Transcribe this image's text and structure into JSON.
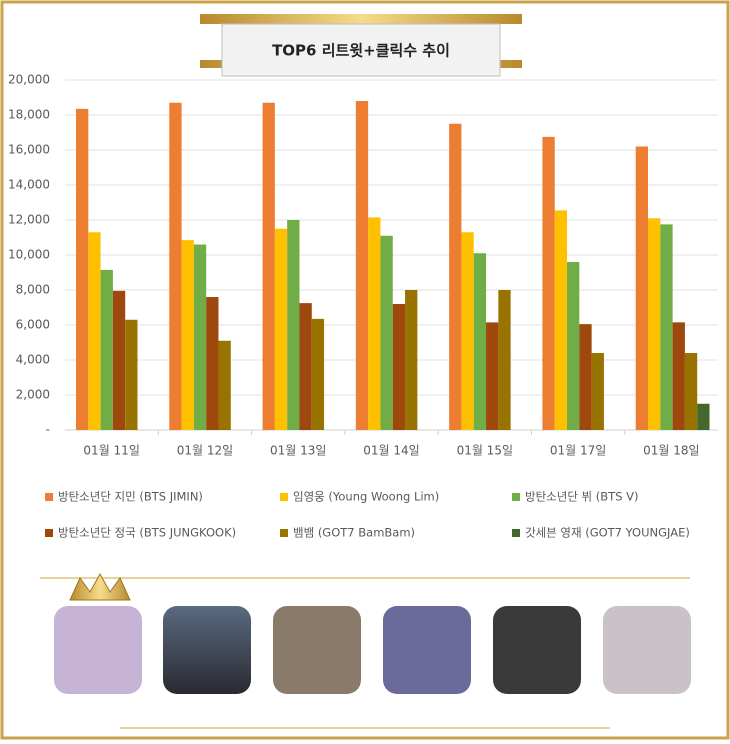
{
  "chart_data": {
    "type": "bar",
    "title": "TOP6 리트윗+클릭수 추이",
    "categories": [
      "01월 11일",
      "01월 12일",
      "01월 13일",
      "01월 14일",
      "01월 15일",
      "01월 17일",
      "01월 18일"
    ],
    "series": [
      {
        "name": "방탄소년단 지민 (BTS JIMIN)",
        "color": "#ed7d31",
        "values": [
          18350,
          18700,
          18700,
          18800,
          17500,
          16750,
          16200
        ]
      },
      {
        "name": "임영웅 (Young Woong Lim)",
        "color": "#ffc000",
        "values": [
          11300,
          10850,
          11500,
          12150,
          11300,
          12550,
          12100
        ]
      },
      {
        "name": "방탄소년단 뷔 (BTS V)",
        "color": "#70ad47",
        "values": [
          9150,
          10600,
          12000,
          11100,
          10100,
          9600,
          11750
        ]
      },
      {
        "name": "방탄소년단 정국 (BTS JUNGKOOK)",
        "color": "#9e480e",
        "values": [
          7950,
          7600,
          7250,
          7200,
          6150,
          6050,
          6150
        ]
      },
      {
        "name": "뱀뱀 (GOT7 BamBam)",
        "color": "#997300",
        "values": [
          6300,
          5100,
          6350,
          8000,
          8000,
          4400,
          4400
        ]
      },
      {
        "name": "갓세븐 영재 (GOT7 YOUNGJAE)",
        "color": "#43682b",
        "values": [
          null,
          null,
          null,
          null,
          null,
          null,
          1500
        ]
      }
    ],
    "ylim": [
      0,
      20000
    ],
    "yticks": [
      {
        "value": 0,
        "label": "-"
      },
      {
        "value": 2000,
        "label": "2,000"
      },
      {
        "value": 4000,
        "label": "4,000"
      },
      {
        "value": 6000,
        "label": "6,000"
      },
      {
        "value": 8000,
        "label": "8,000"
      },
      {
        "value": 10000,
        "label": "10,000"
      },
      {
        "value": 12000,
        "label": "12,000"
      },
      {
        "value": 14000,
        "label": "14,000"
      },
      {
        "value": 16000,
        "label": "16,000"
      },
      {
        "value": 18000,
        "label": "18,000"
      },
      {
        "value": 20000,
        "label": "20,000"
      }
    ],
    "grid": true
  }
}
